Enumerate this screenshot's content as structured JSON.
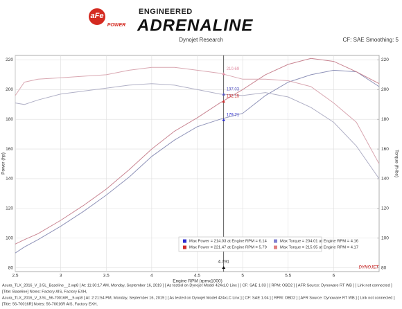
{
  "header": {
    "logo_text": "aFe",
    "logo_sub": "POWER",
    "tagline": "ENGINEERED",
    "brand": "ADRENALINE",
    "watermark": "DYNOJET"
  },
  "chart_data": {
    "type": "line",
    "title": "Dynojet Research",
    "subtitle": "CF: SAE Smoothing: 5",
    "x_label": "Engine RPM (rpmx1000)",
    "y_label": "Power (hp)",
    "y2_label": "Torque (ft-lbs)",
    "x": [
      2.5,
      2.6,
      2.75,
      3.0,
      3.25,
      3.5,
      3.75,
      4.0,
      4.25,
      4.5,
      4.75,
      5.0,
      5.25,
      5.5,
      5.75,
      6.0,
      6.25,
      6.5
    ],
    "xlim": [
      2.5,
      6.5
    ],
    "xticks": [
      2.5,
      3.0,
      3.5,
      4.0,
      4.5,
      5.0,
      5.5,
      6.0
    ],
    "ylim": [
      77.5,
      223
    ],
    "yticks": [
      80,
      100,
      120,
      140,
      160,
      180,
      200,
      220
    ],
    "y2lim": [
      77.5,
      223
    ],
    "y2ticks": [
      80,
      100,
      120,
      140,
      160,
      180,
      200,
      220
    ],
    "grid": true,
    "series": [
      {
        "name": "Max Power = 214.03 at Engine RPM = 6.14",
        "color": "#8e92b8",
        "legend_color": "#2b2bd0",
        "values": [
          90,
          94,
          99,
          108,
          118,
          129,
          141,
          155,
          166,
          175,
          180,
          184,
          196,
          205,
          210,
          213,
          212,
          202
        ]
      },
      {
        "name": "Max Power = 221.47 at Engine RPM = 5.79",
        "color": "#c98592",
        "legend_color": "#d02b2b",
        "values": [
          96,
          99,
          103,
          112,
          122,
          133,
          146,
          160,
          172,
          181,
          191,
          200,
          210,
          217,
          221,
          219,
          212,
          204
        ]
      },
      {
        "name": "Max Torque = 204.01 at Engine RPM = 4.16",
        "color": "#b0b0c6",
        "legend_color": "#8080d0",
        "axis": "y2",
        "values": [
          191,
          190,
          193,
          197,
          199,
          201,
          203,
          204,
          203,
          200,
          197,
          196,
          198,
          195,
          188,
          178,
          162,
          140
        ]
      },
      {
        "name": "Max Torque = 215.95 at Engine RPM = 4.17",
        "color": "#d9a7b1",
        "legend_color": "#e08080",
        "axis": "y2",
        "values": [
          196,
          205,
          207,
          208,
          209,
          210,
          213,
          215,
          215,
          213,
          211,
          207,
          207,
          206,
          202,
          191,
          178,
          150
        ]
      }
    ],
    "cursor": {
      "x": 4.791,
      "points": [
        {
          "value": 210.69,
          "color": "#e08aa0",
          "axis": "y2"
        },
        {
          "value": 197.03,
          "color": "#5050c0",
          "axis": "y2"
        },
        {
          "value": 192.15,
          "color": "#d02b2b"
        },
        {
          "value": 179.71,
          "color": "#2b2bd0"
        }
      ]
    }
  },
  "footer": {
    "lines": [
      "Acura_TLX_2016_V_3.5L_Baseline__2.wp8 [ At: 11:30:17 AM, Monday, September 16, 2019 ] [ As tested on Dynojet Model 424xLC Linx ] [ CF: SAE 1.03 ] [ RPM: OBD2 ] [ AFR Source: Dynoware RT WB ] [ Link not connected ]",
      "[Title: Baseline]  Notes: Factory AIS, Factory EXH,",
      "Acura_TLX_2016_V_3.5L_56-70016R__5.wp8 [ At: 2:21:54 PM, Monday, September 16, 2019 ] [ As tested on Dynojet Model 424xLC Linx ] [ CF: SAE 1.04 ] [ RPM: OBD2 ] [ AFR Source: Dynoware RT WB ] [ Link not connected ]",
      "[Title: 56-70016R]  Notes: 56-70016R AIS, Factory EXH,"
    ]
  }
}
